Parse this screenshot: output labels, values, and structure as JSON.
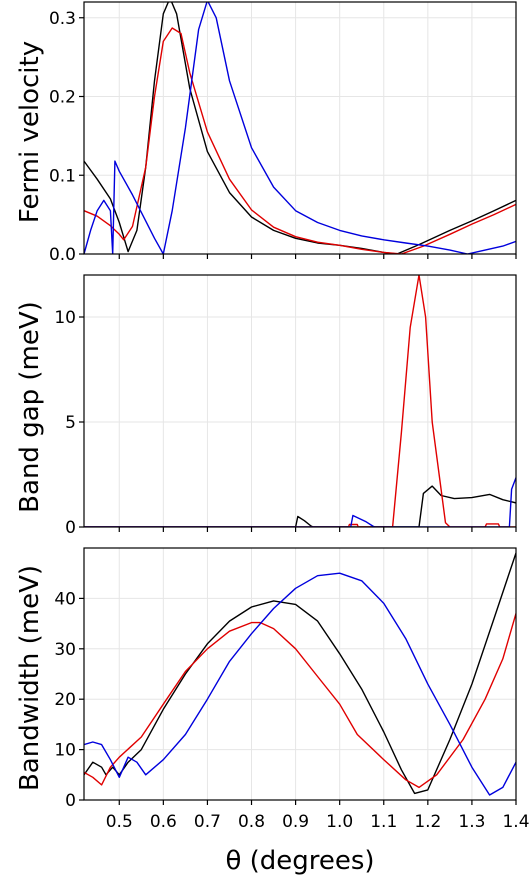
{
  "chart_data": [
    {
      "type": "line",
      "ylabel": "Fermi velocity",
      "xlim": [
        0.42,
        1.4
      ],
      "ylim": [
        0,
        0.32
      ],
      "yticks": [
        0.0,
        0.1,
        0.2,
        0.3
      ],
      "ytick_labels": [
        "0.0",
        "0.1",
        "0.2",
        "0.3"
      ],
      "grid": true,
      "series": [
        {
          "color": "#000000",
          "points": [
            [
              0.42,
              0.118
            ],
            [
              0.45,
              0.095
            ],
            [
              0.48,
              0.07
            ],
            [
              0.5,
              0.04
            ],
            [
              0.52,
              0.003
            ],
            [
              0.54,
              0.03
            ],
            [
              0.56,
              0.11
            ],
            [
              0.58,
              0.22
            ],
            [
              0.6,
              0.305
            ],
            [
              0.615,
              0.325
            ],
            [
              0.63,
              0.305
            ],
            [
              0.66,
              0.21
            ],
            [
              0.7,
              0.13
            ],
            [
              0.75,
              0.078
            ],
            [
              0.8,
              0.047
            ],
            [
              0.85,
              0.03
            ],
            [
              0.9,
              0.02
            ],
            [
              0.95,
              0.014
            ],
            [
              1.0,
              0.011
            ],
            [
              1.05,
              0.007
            ],
            [
              1.1,
              0.002
            ],
            [
              1.13,
              0.0
            ],
            [
              1.18,
              0.012
            ],
            [
              1.25,
              0.03
            ],
            [
              1.3,
              0.042
            ],
            [
              1.35,
              0.055
            ],
            [
              1.4,
              0.068
            ]
          ]
        },
        {
          "color": "#e00000",
          "points": [
            [
              0.42,
              0.055
            ],
            [
              0.45,
              0.048
            ],
            [
              0.48,
              0.036
            ],
            [
              0.5,
              0.025
            ],
            [
              0.51,
              0.018
            ],
            [
              0.53,
              0.035
            ],
            [
              0.56,
              0.11
            ],
            [
              0.58,
              0.2
            ],
            [
              0.6,
              0.27
            ],
            [
              0.62,
              0.287
            ],
            [
              0.64,
              0.28
            ],
            [
              0.66,
              0.23
            ],
            [
              0.7,
              0.155
            ],
            [
              0.75,
              0.095
            ],
            [
              0.8,
              0.056
            ],
            [
              0.85,
              0.034
            ],
            [
              0.9,
              0.022
            ],
            [
              0.95,
              0.015
            ],
            [
              1.0,
              0.011
            ],
            [
              1.05,
              0.006
            ],
            [
              1.1,
              0.002
            ],
            [
              1.14,
              0.0
            ],
            [
              1.19,
              0.01
            ],
            [
              1.25,
              0.025
            ],
            [
              1.3,
              0.038
            ],
            [
              1.35,
              0.05
            ],
            [
              1.4,
              0.063
            ]
          ]
        },
        {
          "color": "#0000dd",
          "points": [
            [
              0.42,
              0.0
            ],
            [
              0.435,
              0.03
            ],
            [
              0.45,
              0.055
            ],
            [
              0.465,
              0.068
            ],
            [
              0.48,
              0.055
            ],
            [
              0.485,
              0.0
            ],
            [
              0.49,
              0.118
            ],
            [
              0.5,
              0.105
            ],
            [
              0.53,
              0.075
            ],
            [
              0.56,
              0.042
            ],
            [
              0.58,
              0.02
            ],
            [
              0.6,
              0.0
            ],
            [
              0.62,
              0.055
            ],
            [
              0.65,
              0.16
            ],
            [
              0.68,
              0.285
            ],
            [
              0.7,
              0.322
            ],
            [
              0.72,
              0.3
            ],
            [
              0.75,
              0.22
            ],
            [
              0.8,
              0.135
            ],
            [
              0.85,
              0.085
            ],
            [
              0.9,
              0.055
            ],
            [
              0.95,
              0.04
            ],
            [
              1.0,
              0.03
            ],
            [
              1.05,
              0.023
            ],
            [
              1.1,
              0.018
            ],
            [
              1.15,
              0.014
            ],
            [
              1.2,
              0.01
            ],
            [
              1.25,
              0.005
            ],
            [
              1.29,
              0.0
            ],
            [
              1.33,
              0.005
            ],
            [
              1.37,
              0.01
            ],
            [
              1.4,
              0.016
            ]
          ]
        }
      ]
    },
    {
      "type": "line",
      "ylabel": "Band gap (meV)",
      "xlim": [
        0.42,
        1.4
      ],
      "ylim": [
        0,
        12
      ],
      "yticks": [
        0,
        5,
        10
      ],
      "ytick_labels": [
        "0",
        "5",
        "10"
      ],
      "grid": true,
      "series": [
        {
          "color": "#000000",
          "points": [
            [
              0.42,
              0
            ],
            [
              0.9,
              0
            ],
            [
              0.905,
              0.5
            ],
            [
              0.92,
              0.3
            ],
            [
              0.935,
              0.05
            ],
            [
              0.94,
              0
            ],
            [
              1.18,
              0
            ],
            [
              1.19,
              1.6
            ],
            [
              1.21,
              1.95
            ],
            [
              1.23,
              1.5
            ],
            [
              1.26,
              1.35
            ],
            [
              1.3,
              1.4
            ],
            [
              1.34,
              1.55
            ],
            [
              1.37,
              1.3
            ],
            [
              1.4,
              1.15
            ]
          ]
        },
        {
          "color": "#e00000",
          "points": [
            [
              0.42,
              0
            ],
            [
              1.02,
              0
            ],
            [
              1.022,
              0.12
            ],
            [
              1.04,
              0.12
            ],
            [
              1.042,
              0
            ],
            [
              1.12,
              0
            ],
            [
              1.14,
              4.5
            ],
            [
              1.16,
              9.5
            ],
            [
              1.18,
              12.0
            ],
            [
              1.195,
              10.0
            ],
            [
              1.21,
              5.0
            ],
            [
              1.24,
              0.2
            ],
            [
              1.25,
              0
            ],
            [
              1.33,
              0
            ],
            [
              1.333,
              0.15
            ],
            [
              1.36,
              0.15
            ],
            [
              1.363,
              0
            ],
            [
              1.4,
              0
            ]
          ]
        },
        {
          "color": "#0000dd",
          "points": [
            [
              0.42,
              0
            ],
            [
              1.025,
              0
            ],
            [
              1.03,
              0.55
            ],
            [
              1.045,
              0.4
            ],
            [
              1.06,
              0.25
            ],
            [
              1.075,
              0.05
            ],
            [
              1.08,
              0
            ],
            [
              1.385,
              0
            ],
            [
              1.39,
              1.8
            ],
            [
              1.4,
              2.35
            ]
          ]
        }
      ]
    },
    {
      "type": "line",
      "ylabel": "Bandwidth (meV)",
      "xlabel": "θ (degrees)",
      "xlim": [
        0.42,
        1.4
      ],
      "ylim": [
        0,
        50
      ],
      "xticks": [
        0.5,
        0.6,
        0.7,
        0.8,
        0.9,
        1.0,
        1.1,
        1.2,
        1.3,
        1.4
      ],
      "xtick_labels": [
        "0.5",
        "0.6",
        "0.7",
        "0.8",
        "0.9",
        "1.0",
        "1.1",
        "1.2",
        "1.3",
        "1.4"
      ],
      "yticks": [
        0,
        10,
        20,
        30,
        40
      ],
      "ytick_labels": [
        "0",
        "10",
        "20",
        "30",
        "40"
      ],
      "grid": true,
      "series": [
        {
          "color": "#000000",
          "points": [
            [
              0.42,
              5.0
            ],
            [
              0.44,
              7.5
            ],
            [
              0.46,
              6.5
            ],
            [
              0.47,
              5.0
            ],
            [
              0.485,
              6.5
            ],
            [
              0.5,
              5.0
            ],
            [
              0.52,
              7.5
            ],
            [
              0.55,
              10.0
            ],
            [
              0.6,
              18.0
            ],
            [
              0.65,
              25.0
            ],
            [
              0.7,
              31.0
            ],
            [
              0.75,
              35.5
            ],
            [
              0.8,
              38.3
            ],
            [
              0.85,
              39.5
            ],
            [
              0.9,
              38.8
            ],
            [
              0.95,
              35.5
            ],
            [
              1.0,
              29.0
            ],
            [
              1.05,
              22.0
            ],
            [
              1.1,
              13.5
            ],
            [
              1.14,
              6.0
            ],
            [
              1.17,
              1.3
            ],
            [
              1.2,
              2.0
            ],
            [
              1.25,
              12.0
            ],
            [
              1.3,
              23.0
            ],
            [
              1.35,
              36.0
            ],
            [
              1.4,
              49.0
            ]
          ]
        },
        {
          "color": "#e00000",
          "points": [
            [
              0.42,
              5.5
            ],
            [
              0.44,
              4.5
            ],
            [
              0.46,
              3.0
            ],
            [
              0.48,
              6.5
            ],
            [
              0.5,
              8.5
            ],
            [
              0.55,
              12.5
            ],
            [
              0.6,
              19.0
            ],
            [
              0.65,
              25.5
            ],
            [
              0.7,
              30.0
            ],
            [
              0.75,
              33.5
            ],
            [
              0.8,
              35.2
            ],
            [
              0.82,
              35.2
            ],
            [
              0.85,
              34.0
            ],
            [
              0.9,
              30.0
            ],
            [
              0.95,
              24.5
            ],
            [
              1.0,
              19.0
            ],
            [
              1.04,
              13.0
            ],
            [
              1.1,
              8.0
            ],
            [
              1.15,
              4.0
            ],
            [
              1.18,
              2.5
            ],
            [
              1.22,
              5.0
            ],
            [
              1.28,
              12.0
            ],
            [
              1.33,
              20.0
            ],
            [
              1.37,
              28.0
            ],
            [
              1.4,
              37.0
            ]
          ]
        },
        {
          "color": "#0000dd",
          "points": [
            [
              0.42,
              11.0
            ],
            [
              0.44,
              11.5
            ],
            [
              0.46,
              11.0
            ],
            [
              0.48,
              8.0
            ],
            [
              0.5,
              4.5
            ],
            [
              0.52,
              8.5
            ],
            [
              0.54,
              7.5
            ],
            [
              0.56,
              5.0
            ],
            [
              0.6,
              8.0
            ],
            [
              0.65,
              13.0
            ],
            [
              0.7,
              20.0
            ],
            [
              0.75,
              27.5
            ],
            [
              0.8,
              33.0
            ],
            [
              0.85,
              38.0
            ],
            [
              0.9,
              42.0
            ],
            [
              0.95,
              44.5
            ],
            [
              1.0,
              45.0
            ],
            [
              1.05,
              43.5
            ],
            [
              1.1,
              39.0
            ],
            [
              1.15,
              32.0
            ],
            [
              1.2,
              23.0
            ],
            [
              1.25,
              15.0
            ],
            [
              1.3,
              6.5
            ],
            [
              1.34,
              1.0
            ],
            [
              1.37,
              2.5
            ],
            [
              1.4,
              7.5
            ]
          ]
        }
      ]
    }
  ]
}
